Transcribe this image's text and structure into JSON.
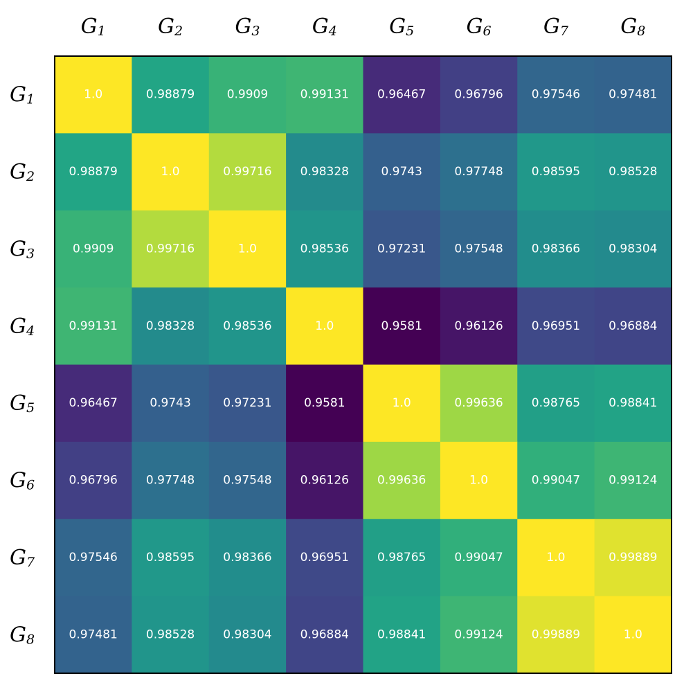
{
  "chart_data": {
    "type": "heatmap",
    "title": "",
    "xlabel": "",
    "ylabel": "",
    "colormap": "viridis",
    "value_range": [
      0.9581,
      1.0
    ],
    "x_labels": [
      {
        "base": "G",
        "sub": "1"
      },
      {
        "base": "G",
        "sub": "2"
      },
      {
        "base": "G",
        "sub": "3"
      },
      {
        "base": "G",
        "sub": "4"
      },
      {
        "base": "G",
        "sub": "5"
      },
      {
        "base": "G",
        "sub": "6"
      },
      {
        "base": "G",
        "sub": "7"
      },
      {
        "base": "G",
        "sub": "8"
      }
    ],
    "y_labels": [
      {
        "base": "G",
        "sub": "1"
      },
      {
        "base": "G",
        "sub": "2"
      },
      {
        "base": "G",
        "sub": "3"
      },
      {
        "base": "G",
        "sub": "4"
      },
      {
        "base": "G",
        "sub": "5"
      },
      {
        "base": "G",
        "sub": "6"
      },
      {
        "base": "G",
        "sub": "7"
      },
      {
        "base": "G",
        "sub": "8"
      }
    ],
    "values": [
      [
        1.0,
        0.98879,
        0.9909,
        0.99131,
        0.96467,
        0.96796,
        0.97546,
        0.97481
      ],
      [
        0.98879,
        1.0,
        0.99716,
        0.98328,
        0.9743,
        0.97748,
        0.98595,
        0.98528
      ],
      [
        0.9909,
        0.99716,
        1.0,
        0.98536,
        0.97231,
        0.97548,
        0.98366,
        0.98304
      ],
      [
        0.99131,
        0.98328,
        0.98536,
        1.0,
        0.9581,
        0.96126,
        0.96951,
        0.96884
      ],
      [
        0.96467,
        0.9743,
        0.97231,
        0.9581,
        1.0,
        0.99636,
        0.98765,
        0.98841
      ],
      [
        0.96796,
        0.97748,
        0.97548,
        0.96126,
        0.99636,
        1.0,
        0.99047,
        0.99124
      ],
      [
        0.97546,
        0.98595,
        0.98366,
        0.96951,
        0.98765,
        0.99047,
        1.0,
        0.99889
      ],
      [
        0.97481,
        0.98528,
        0.98304,
        0.96884,
        0.98841,
        0.99124,
        0.99889,
        1.0
      ]
    ],
    "cell_labels": [
      [
        "1.0",
        "0.98879",
        "0.9909",
        "0.99131",
        "0.96467",
        "0.96796",
        "0.97546",
        "0.97481"
      ],
      [
        "0.98879",
        "1.0",
        "0.99716",
        "0.98328",
        "0.9743",
        "0.97748",
        "0.98595",
        "0.98528"
      ],
      [
        "0.9909",
        "0.99716",
        "1.0",
        "0.98536",
        "0.97231",
        "0.97548",
        "0.98366",
        "0.98304"
      ],
      [
        "0.99131",
        "0.98328",
        "0.98536",
        "1.0",
        "0.9581",
        "0.96126",
        "0.96951",
        "0.96884"
      ],
      [
        "0.96467",
        "0.9743",
        "0.97231",
        "0.9581",
        "1.0",
        "0.99636",
        "0.98765",
        "0.98841"
      ],
      [
        "0.96796",
        "0.97748",
        "0.97548",
        "0.96126",
        "0.99636",
        "1.0",
        "0.99047",
        "0.99124"
      ],
      [
        "0.97546",
        "0.98595",
        "0.98366",
        "0.96951",
        "0.98765",
        "0.99047",
        "1.0",
        "0.99889"
      ],
      [
        "0.97481",
        "0.98528",
        "0.98304",
        "0.96884",
        "0.98841",
        "0.99124",
        "0.99889",
        "1.0"
      ]
    ],
    "grid": false,
    "legend": "none",
    "colorbar": false
  }
}
